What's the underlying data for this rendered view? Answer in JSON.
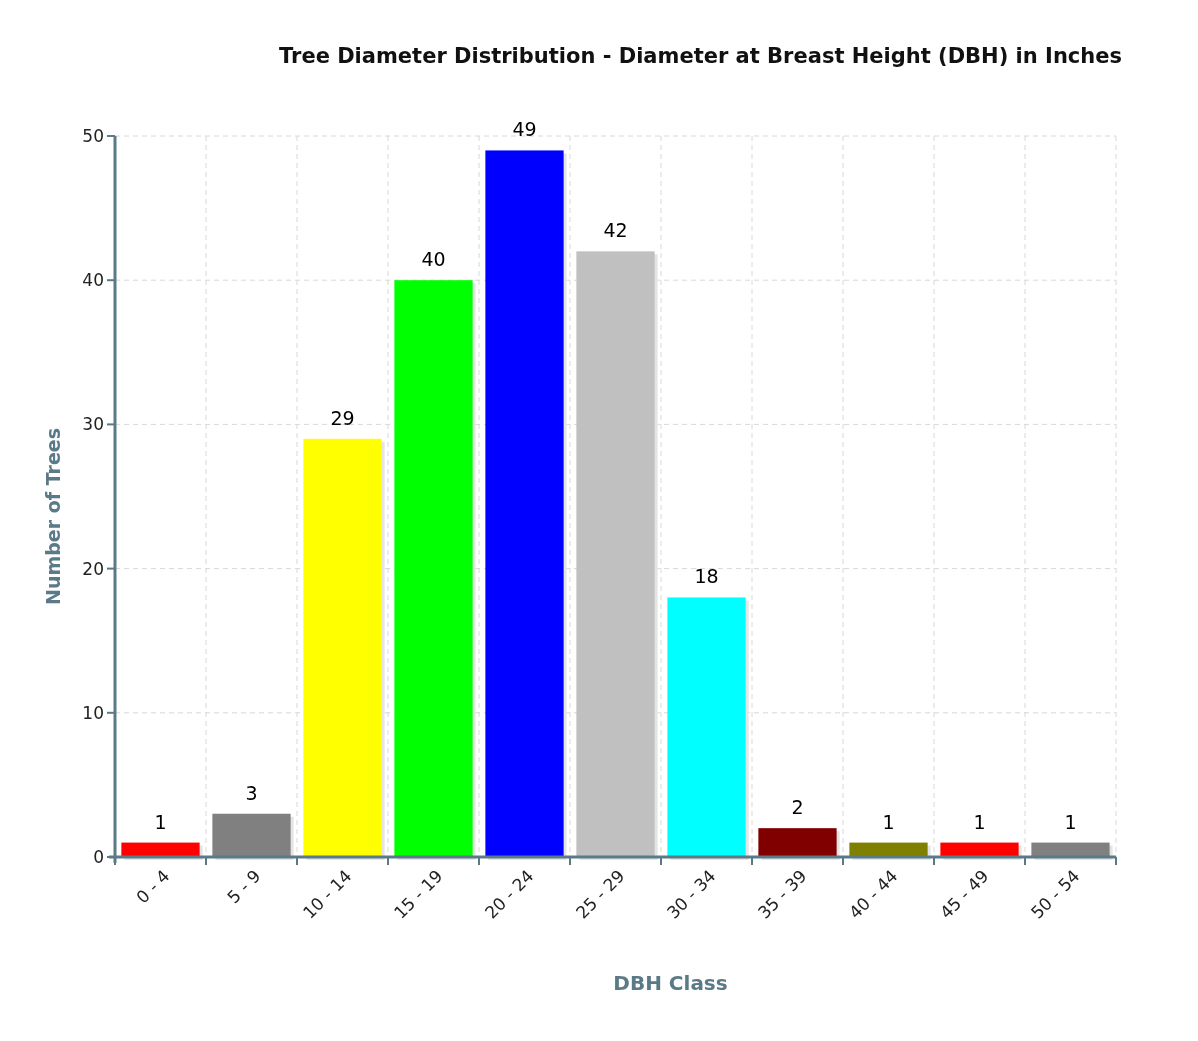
{
  "chart_data": {
    "type": "bar",
    "title": "Tree Diameter Distribution - Diameter at Breast Height (DBH) in Inches",
    "xlabel": "DBH Class",
    "ylabel": "Number of Trees",
    "categories": [
      "0 - 4",
      "5 - 9",
      "10 - 14",
      "15 - 19",
      "20 - 24",
      "25 - 29",
      "30 - 34",
      "35 - 39",
      "40 - 44",
      "45 - 49",
      "50 - 54"
    ],
    "values": [
      1,
      3,
      29,
      40,
      49,
      42,
      18,
      2,
      1,
      1,
      1
    ],
    "colors": [
      "#ff0000",
      "#808080",
      "#ffff00",
      "#00ff00",
      "#0000ff",
      "#c0c0c0",
      "#00ffff",
      "#800000",
      "#808000",
      "#ff0000",
      "#808080"
    ],
    "ylim": [
      0,
      50
    ],
    "yticks": [
      0,
      10,
      20,
      30,
      40,
      50
    ],
    "grid": true,
    "data_labels": true
  }
}
